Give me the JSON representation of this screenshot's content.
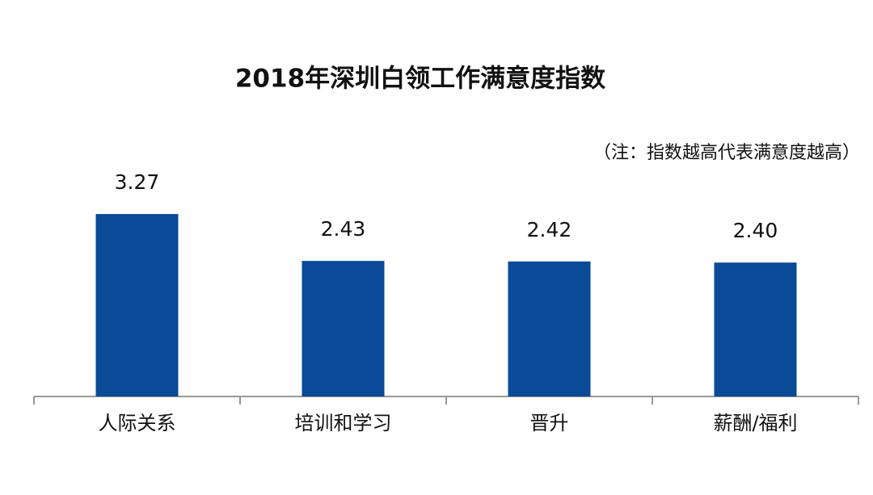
{
  "chart_data": {
    "type": "bar",
    "title": "2018年深圳白领工作满意度指数",
    "annotation": "（注：指数越高代表满意度越高）",
    "categories": [
      "人际关系",
      "培训和学习",
      "晋升",
      "薪酬/福利"
    ],
    "values": [
      3.27,
      2.43,
      2.42,
      2.4
    ],
    "value_labels": [
      "3.27",
      "2.43",
      "2.42",
      "2.40"
    ],
    "color": "#0b4a96"
  }
}
